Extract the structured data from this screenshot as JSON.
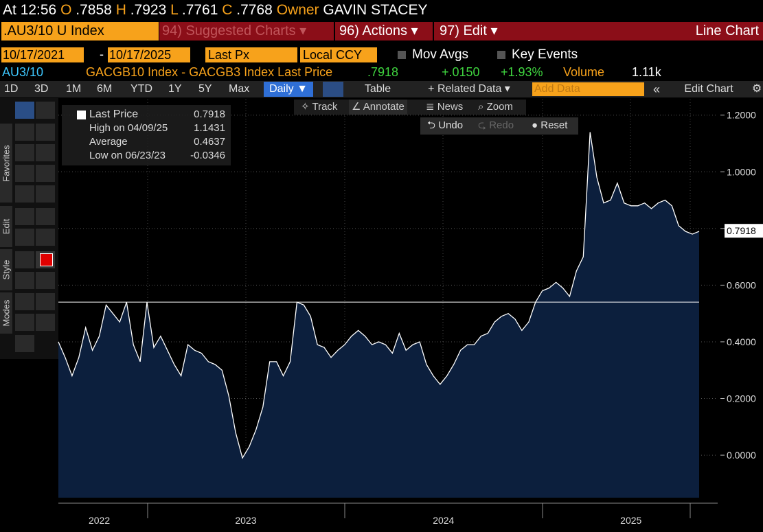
{
  "header": {
    "time_label": "At",
    "time": "12:56",
    "open_label": "O",
    "open": ".7858",
    "high_label": "H",
    "high": ".7923",
    "low_label": "L",
    "low": ".7761",
    "close_label": "C",
    "close": ".7768",
    "owner_label": "Owner",
    "owner": "GAVIN STACEY"
  },
  "menu": {
    "security": ".AU3/10 U Index",
    "suggested": "94) Suggested Charts ▾",
    "actions": "96) Actions ▾",
    "edit": "97) Edit ▾",
    "view": "Line Chart"
  },
  "settings": {
    "start": "10/17/2021",
    "dash": "-",
    "end": "10/17/2025",
    "field": "Last Px",
    "currency": "Local CCY",
    "mov_avgs": "Mov Avgs",
    "key_events": "Key Events"
  },
  "quote": {
    "ticker": "AU3/10",
    "description": "GACGB10 Index - GACGB3 Index Last Price",
    "last": ".7918",
    "change": "+.0150",
    "change_pct": "+1.93%",
    "volume_label": "Volume",
    "volume": "1.11k"
  },
  "tabs": {
    "ranges": [
      "1D",
      "3D",
      "1M",
      "6M",
      "YTD",
      "1Y",
      "5Y",
      "Max"
    ],
    "frequency": "Daily ▼",
    "table": "Table",
    "related": "+ Related Data ▾",
    "add_data": "Add Data",
    "collapse": "«",
    "edit_chart": "Edit Chart"
  },
  "toolbar": {
    "sections": [
      "Favorites",
      "Edit",
      "Style",
      "Modes"
    ]
  },
  "chart_tools": {
    "track": "Track",
    "annotate": "Annotate",
    "news": "News",
    "zoom": "Zoom",
    "undo": "Undo",
    "redo": "Redo",
    "reset": "Reset"
  },
  "legend": {
    "rows": [
      {
        "label": "Last Price",
        "value": "0.7918"
      },
      {
        "label": "High on 04/09/25",
        "value": "1.1431"
      },
      {
        "label": "Average",
        "value": "0.4637"
      },
      {
        "label": "Low on 06/23/23",
        "value": "-0.0346"
      }
    ]
  },
  "chart_data": {
    "type": "area",
    "color": "#ffffff",
    "fill": "#0c1f3d",
    "values": [
      0.4,
      0.345,
      0.28,
      0.345,
      0.45,
      0.37,
      0.42,
      0.53,
      0.5,
      0.47,
      0.54,
      0.39,
      0.33,
      0.54,
      0.38,
      0.42,
      0.37,
      0.32,
      0.28,
      0.39,
      0.37,
      0.36,
      0.33,
      0.32,
      0.3,
      0.21,
      0.08,
      -0.01,
      0.03,
      0.09,
      0.17,
      0.33,
      0.33,
      0.28,
      0.33,
      0.54,
      0.53,
      0.49,
      0.39,
      0.38,
      0.345,
      0.37,
      0.39,
      0.42,
      0.44,
      0.42,
      0.39,
      0.4,
      0.39,
      0.36,
      0.43,
      0.37,
      0.39,
      0.4,
      0.32,
      0.28,
      0.25,
      0.28,
      0.32,
      0.37,
      0.39,
      0.39,
      0.42,
      0.43,
      0.47,
      0.49,
      0.5,
      0.48,
      0.44,
      0.47,
      0.54,
      0.58,
      0.59,
      0.61,
      0.59,
      0.56,
      0.65,
      0.7,
      1.14,
      0.98,
      0.89,
      0.9,
      0.96,
      0.89,
      0.88,
      0.88,
      0.89,
      0.87,
      0.89,
      0.9,
      0.88,
      0.81,
      0.79,
      0.78,
      0.79
    ],
    "xlim": [
      0,
      94
    ],
    "xticks": [
      {
        "value": 6,
        "label": "2022"
      },
      {
        "value": 27.5,
        "label": "2023"
      },
      {
        "value": 56.5,
        "label": "2024"
      },
      {
        "value": 84,
        "label": "2025"
      }
    ],
    "ylim": [
      -0.15,
      1.255
    ],
    "yticks": [
      {
        "value": 0,
        "label": "0.0000"
      },
      {
        "value": 0.2,
        "label": "0.2000"
      },
      {
        "value": 0.4,
        "label": "0.4000"
      },
      {
        "value": 0.6,
        "label": "0.6000"
      },
      {
        "value": 0.8,
        "label": "0.8000"
      },
      {
        "value": 1.0,
        "label": "1.0000"
      },
      {
        "value": 1.2,
        "label": "1.2000"
      }
    ],
    "hline": 0.54,
    "last_value": 0.7918,
    "grid": true
  }
}
